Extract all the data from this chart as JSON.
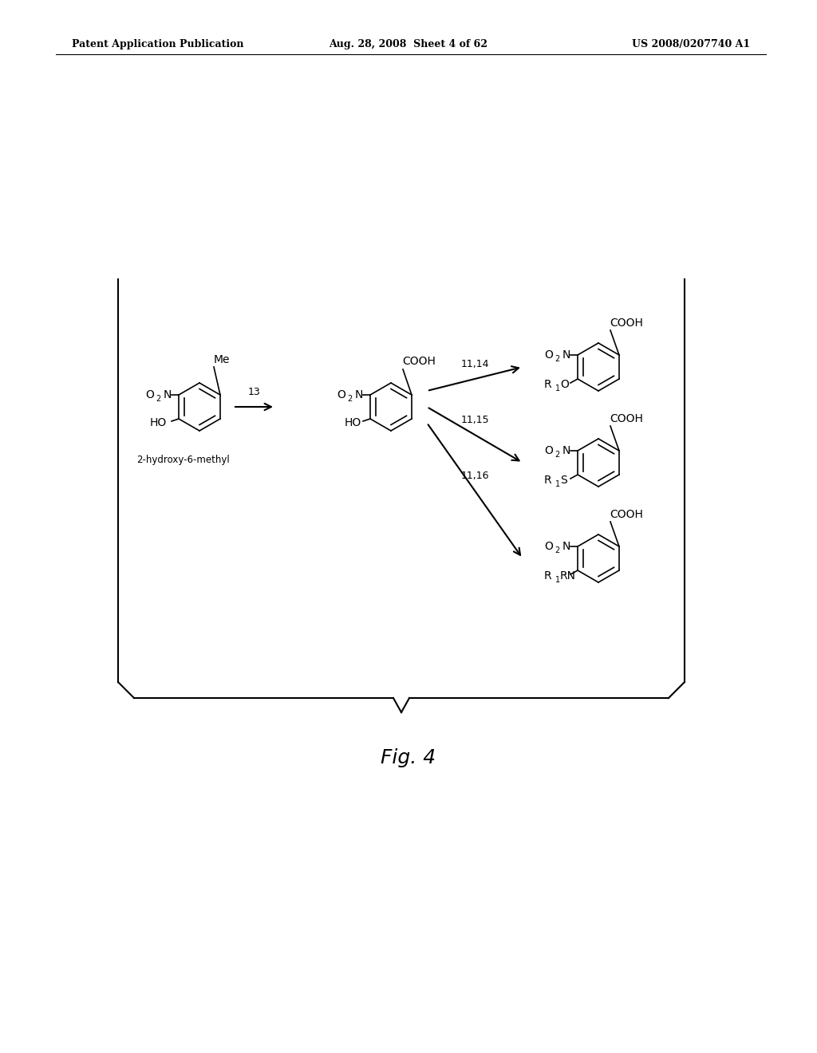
{
  "title": "Fig. 4",
  "header_left": "Patent Application Publication",
  "header_mid": "Aug. 28, 2008  Sheet 4 of 62",
  "header_right": "US 2008/0207740 A1",
  "background_color": "#ffffff",
  "text_color": "#000000",
  "fig_label": "Fig. 4"
}
